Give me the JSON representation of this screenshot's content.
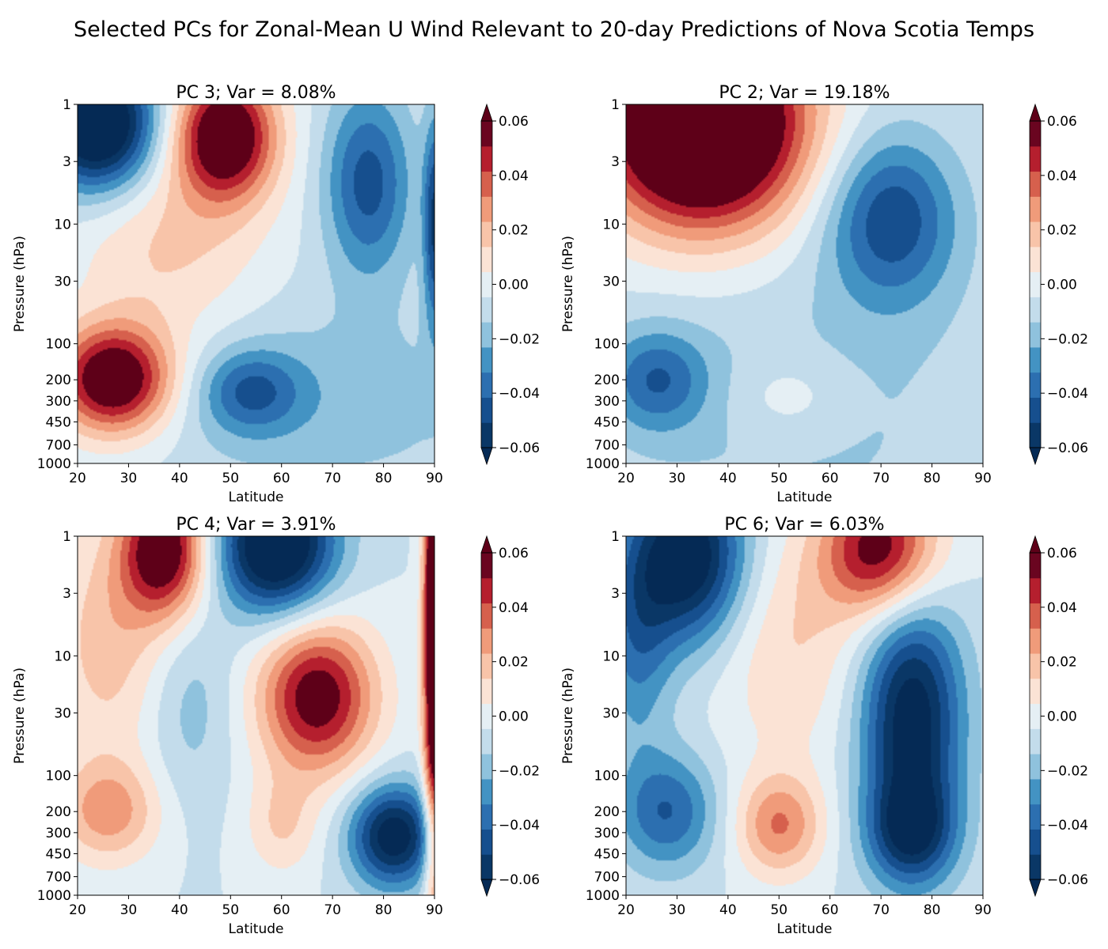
{
  "figure": {
    "title": "Selected PCs for Zonal-Mean U Wind Relevant to 20-day Predictions of Nova Scotia Temps"
  },
  "colormap": {
    "name": "RdBu_r",
    "levels": [
      -0.06,
      -0.05,
      -0.04,
      -0.03,
      -0.02,
      -0.01,
      0.0,
      0.01,
      0.02,
      0.03,
      0.04,
      0.05,
      0.06
    ],
    "colors": [
      "#0a3766",
      "#164f8e",
      "#2c6fb0",
      "#4393c3",
      "#8fc2dd",
      "#c3dceb",
      "#e5eff4",
      "#fbe3d5",
      "#f8c4a9",
      "#f09b7a",
      "#d6604d",
      "#b51f2e",
      "#6a0520"
    ],
    "under_color": "#052a55",
    "over_color": "#5e0018",
    "colorbar_ticks": [
      -0.06,
      -0.04,
      -0.02,
      0.0,
      0.02,
      0.04,
      0.06
    ],
    "colorbar_tick_labels": [
      "−0.06",
      "−0.04",
      "−0.02",
      "0.00",
      "0.02",
      "0.04",
      "0.06"
    ]
  },
  "chart_data": [
    {
      "type": "heatmap",
      "title": "PC 3; Var = 8.08%",
      "xlabel": "Latitude",
      "ylabel": "Pressure (hPa)",
      "xlim": [
        20,
        90
      ],
      "ylim": [
        1000,
        1
      ],
      "yscale": "log",
      "xticks": [
        20,
        30,
        40,
        50,
        60,
        70,
        80,
        90
      ],
      "xtick_labels": [
        "20",
        "30",
        "40",
        "50",
        "60",
        "70",
        "80",
        "90"
      ],
      "yticks": [
        1,
        3,
        10,
        30,
        100,
        200,
        300,
        450,
        700,
        1000
      ],
      "ytick_labels": [
        "1",
        "3",
        "10",
        "30",
        "100",
        "200",
        "300",
        "450",
        "700",
        "1000"
      ],
      "features": [
        {
          "lat": 27,
          "p": 200,
          "amp": 0.08,
          "sx": 8,
          "sy": 0.32
        },
        {
          "lat": 49,
          "p": 1.8,
          "amp": 0.08,
          "sx": 7,
          "sy": 0.38
        },
        {
          "lat": 24,
          "p": 1.5,
          "amp": -0.09,
          "sx": 8,
          "sy": 0.38
        },
        {
          "lat": 77,
          "p": 4.5,
          "amp": -0.045,
          "sx": 6,
          "sy": 0.55
        },
        {
          "lat": 54,
          "p": 250,
          "amp": -0.035,
          "sx": 7,
          "sy": 0.25
        },
        {
          "lat": 38,
          "p": 15,
          "amp": 0.022,
          "sx": 13,
          "sy": 0.6
        },
        {
          "lat": 70,
          "p": 300,
          "amp": -0.015,
          "sx": 24,
          "sy": 0.6
        },
        {
          "lat": 90,
          "p": 10,
          "amp": -0.05,
          "sx": 1.5,
          "sy": 0.6
        }
      ]
    },
    {
      "type": "heatmap",
      "title": "PC 2; Var = 19.18%",
      "xlabel": "Latitude",
      "ylabel": "Pressure (hPa)",
      "xlim": [
        20,
        90
      ],
      "ylim": [
        1000,
        1
      ],
      "yscale": "log",
      "xticks": [
        20,
        30,
        40,
        50,
        60,
        70,
        80,
        90
      ],
      "xtick_labels": [
        "20",
        "30",
        "40",
        "50",
        "60",
        "70",
        "80",
        "90"
      ],
      "yticks": [
        1,
        3,
        10,
        30,
        100,
        200,
        300,
        450,
        700,
        1000
      ],
      "ytick_labels": [
        "1",
        "3",
        "10",
        "30",
        "100",
        "200",
        "300",
        "450",
        "700",
        "1000"
      ],
      "features": [
        {
          "lat": 35,
          "p": 1.5,
          "amp": 0.12,
          "sx": 14,
          "sy": 0.6
        },
        {
          "lat": 72,
          "p": 9,
          "amp": -0.047,
          "sx": 9,
          "sy": 0.5
        },
        {
          "lat": 26,
          "p": 200,
          "amp": -0.035,
          "sx": 7,
          "sy": 0.3
        },
        {
          "lat": 52,
          "p": 280,
          "amp": 0.014,
          "sx": 8,
          "sy": 0.25
        },
        {
          "lat": 55,
          "p": 400,
          "amp": -0.012,
          "sx": 30,
          "sy": 1.0
        }
      ]
    },
    {
      "type": "heatmap",
      "title": "PC 4; Var = 3.91%",
      "xlabel": "Latitude",
      "ylabel": "Pressure (hPa)",
      "xlim": [
        20,
        90
      ],
      "ylim": [
        1000,
        1
      ],
      "yscale": "log",
      "xticks": [
        20,
        30,
        40,
        50,
        60,
        70,
        80,
        90
      ],
      "xtick_labels": [
        "20",
        "30",
        "40",
        "50",
        "60",
        "70",
        "80",
        "90"
      ],
      "yticks": [
        1,
        3,
        10,
        30,
        100,
        200,
        300,
        450,
        700,
        1000
      ],
      "ytick_labels": [
        "1",
        "3",
        "10",
        "30",
        "100",
        "200",
        "300",
        "450",
        "700",
        "1000"
      ],
      "features": [
        {
          "lat": 37,
          "p": 1.3,
          "amp": 0.075,
          "sx": 6,
          "sy": 0.4
        },
        {
          "lat": 59,
          "p": 1.2,
          "amp": -0.085,
          "sx": 8,
          "sy": 0.4
        },
        {
          "lat": 67,
          "p": 22,
          "amp": 0.07,
          "sx": 8,
          "sy": 0.45
        },
        {
          "lat": 82,
          "p": 320,
          "amp": -0.07,
          "sx": 6,
          "sy": 0.3
        },
        {
          "lat": 26,
          "p": 200,
          "amp": 0.035,
          "sx": 7,
          "sy": 0.3
        },
        {
          "lat": 90,
          "p": 5,
          "amp": 0.1,
          "sx": 1.5,
          "sy": 1.5
        },
        {
          "lat": 26,
          "p": 8,
          "amp": 0.025,
          "sx": 8,
          "sy": 0.7
        },
        {
          "lat": 42,
          "p": 25,
          "amp": -0.015,
          "sx": 6,
          "sy": 0.6
        },
        {
          "lat": 60,
          "p": 260,
          "amp": 0.02,
          "sx": 5,
          "sy": 0.3
        }
      ]
    },
    {
      "type": "heatmap",
      "title": "PC 6; Var = 6.03%",
      "xlabel": "Latitude",
      "ylabel": "Pressure (hPa)",
      "xlim": [
        20,
        90
      ],
      "ylim": [
        1000,
        1
      ],
      "yscale": "log",
      "xticks": [
        20,
        30,
        40,
        50,
        60,
        70,
        80,
        90
      ],
      "xtick_labels": [
        "20",
        "30",
        "40",
        "50",
        "60",
        "70",
        "80",
        "90"
      ],
      "yticks": [
        1,
        3,
        10,
        30,
        100,
        200,
        300,
        450,
        700,
        1000
      ],
      "ytick_labels": [
        "1",
        "3",
        "10",
        "30",
        "100",
        "200",
        "300",
        "450",
        "700",
        "1000"
      ],
      "features": [
        {
          "lat": 32,
          "p": 1.5,
          "amp": -0.075,
          "sx": 8,
          "sy": 0.5
        },
        {
          "lat": 70,
          "p": 1.3,
          "amp": 0.07,
          "sx": 8,
          "sy": 0.4
        },
        {
          "lat": 76,
          "p": 35,
          "amp": -0.07,
          "sx": 7,
          "sy": 0.75
        },
        {
          "lat": 76,
          "p": 300,
          "amp": -0.045,
          "sx": 6,
          "sy": 0.3
        },
        {
          "lat": 28,
          "p": 200,
          "amp": -0.04,
          "sx": 7,
          "sy": 0.35
        },
        {
          "lat": 50,
          "p": 260,
          "amp": 0.04,
          "sx": 6,
          "sy": 0.3
        },
        {
          "lat": 52,
          "p": 8,
          "amp": 0.02,
          "sx": 10,
          "sy": 0.7
        },
        {
          "lat": 22,
          "p": 8,
          "amp": -0.03,
          "sx": 5,
          "sy": 0.6
        }
      ]
    }
  ]
}
